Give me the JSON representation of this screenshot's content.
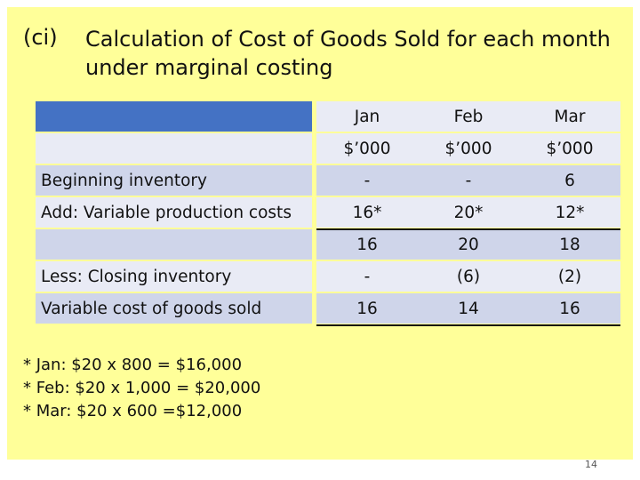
{
  "heading": {
    "number": "(ci)",
    "title": "Calculation of Cost of Goods Sold for each month under marginal costing"
  },
  "table": {
    "months": [
      "Jan",
      "Feb",
      "Mar"
    ],
    "units": [
      "$’000",
      "$’000",
      "$’000"
    ],
    "rows": [
      {
        "label": "Beginning inventory",
        "values": [
          "-",
          "-",
          "6"
        ]
      },
      {
        "label": "Add: Variable production costs",
        "values": [
          "16*",
          "20*",
          "12*"
        ]
      },
      {
        "label": "",
        "values": [
          "16",
          "20",
          "18"
        ]
      },
      {
        "label": "Less: Closing inventory",
        "values": [
          "-",
          "(6)",
          "(2)"
        ]
      },
      {
        "label": "Variable cost of goods sold",
        "values": [
          "16",
          "14",
          "16"
        ]
      }
    ]
  },
  "footnotes": [
    "* Jan: $20 x 800 = $16,000",
    "* Feb: $20 x 1,000 = $20,000",
    "* Mar: $20 x 600 =$12,000"
  ],
  "page_number": "14",
  "colors": {
    "slide_background": "#ffff99",
    "table_header": "#4472c4",
    "table_light": "#e9ebf5",
    "table_mid": "#cfd5ea"
  }
}
